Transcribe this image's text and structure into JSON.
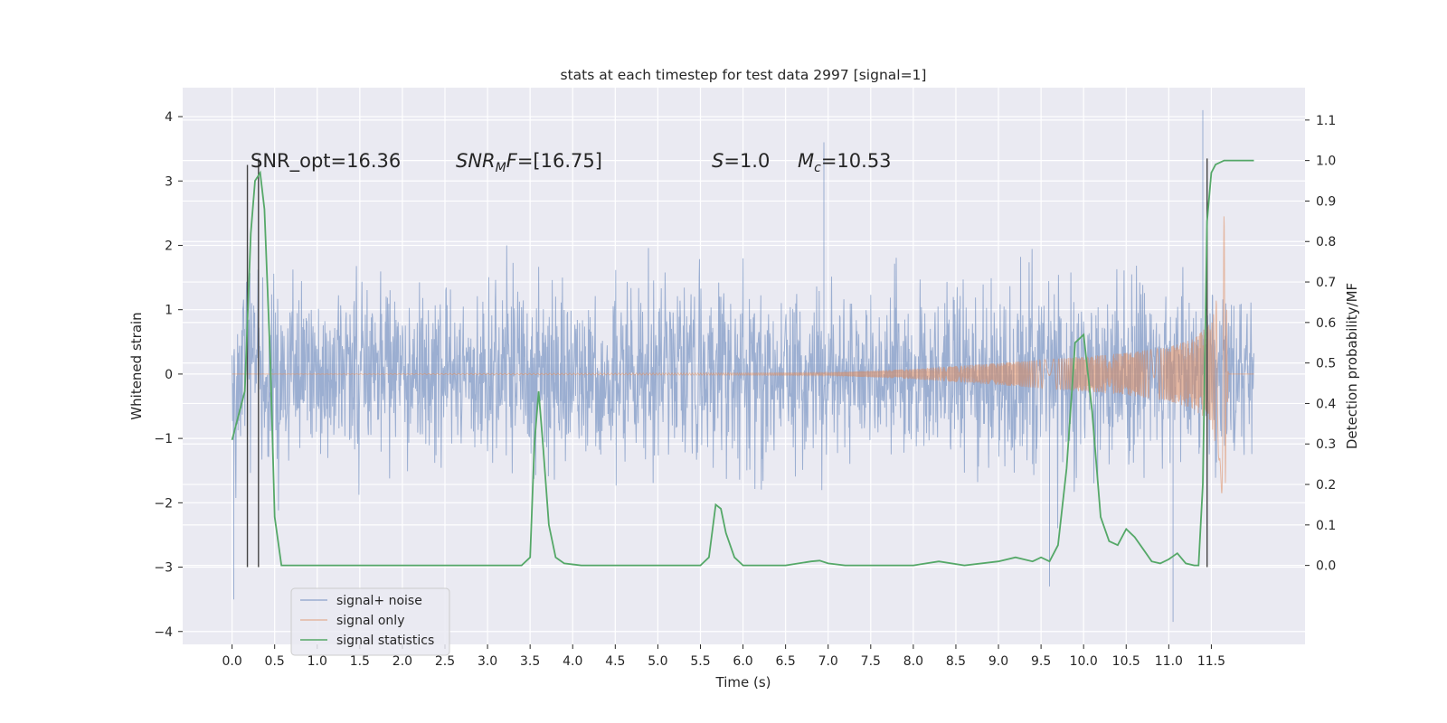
{
  "chart_data": {
    "type": "line",
    "title": "stats at each timestep for test data 2997 [signal=1]",
    "xlabel": "Time (s)",
    "ylabel_left": "Whitened strain",
    "ylabel_right": "Detection probability/MF",
    "xlim": [
      -0.58,
      12.6
    ],
    "ylim_left": [
      -4.2,
      4.45
    ],
    "ylim_right": [
      -0.195,
      1.18
    ],
    "x_ticks": [
      "0.0",
      "0.5",
      "1.0",
      "1.5",
      "2.0",
      "2.5",
      "3.0",
      "3.5",
      "4.0",
      "4.5",
      "5.0",
      "5.5",
      "6.0",
      "6.5",
      "7.0",
      "7.5",
      "8.0",
      "8.5",
      "9.0",
      "9.5",
      "10.0",
      "10.5",
      "11.0",
      "11.5"
    ],
    "y_ticks_left": [
      "−4",
      "−3",
      "−2",
      "−1",
      "0",
      "1",
      "2",
      "3",
      "4"
    ],
    "y_ticks_right": [
      "0.0",
      "0.1",
      "0.2",
      "0.3",
      "0.4",
      "0.5",
      "0.6",
      "0.7",
      "0.8",
      "0.9",
      "1.0",
      "1.1"
    ],
    "grid": true,
    "legend_position": "lower-left",
    "annotations": {
      "snr_opt": "SNR_opt=16.36",
      "snr_mf_sym": "SNR",
      "snr_mf_sub": "M",
      "snr_mf_sym2": "F",
      "snr_mf_val": "=[16.75]",
      "s_sym": "S",
      "s_val": "=1.0",
      "mc_sym": "M",
      "mc_sub": "c",
      "mc_val": "=10.53"
    },
    "series": [
      {
        "name": "signal+ noise",
        "color": "#4c72b0",
        "axis": "left",
        "description_range": [
          -1.3,
          1.3
        ],
        "duration_s": 12.0
      },
      {
        "name": "signal only",
        "color": "#dd8452",
        "axis": "left",
        "envelope": [
          [
            0.0,
            0.0
          ],
          [
            7.0,
            0.02
          ],
          [
            8.0,
            0.08
          ],
          [
            9.0,
            0.17
          ],
          [
            10.0,
            0.27
          ],
          [
            10.5,
            0.33
          ],
          [
            11.0,
            0.42
          ],
          [
            11.3,
            0.55
          ],
          [
            11.5,
            0.8
          ],
          [
            11.6,
            1.4
          ],
          [
            11.65,
            2.5
          ],
          [
            11.7,
            0.0
          ]
        ]
      },
      {
        "name": "signal statistics",
        "color": "#55a868",
        "axis": "right",
        "x": [
          0.0,
          0.15,
          0.22,
          0.27,
          0.3,
          0.33,
          0.38,
          0.45,
          0.5,
          0.58,
          0.8,
          1.5,
          2.5,
          3.0,
          3.4,
          3.5,
          3.55,
          3.6,
          3.65,
          3.72,
          3.8,
          3.9,
          4.1,
          4.5,
          5.0,
          5.5,
          5.6,
          5.68,
          5.74,
          5.8,
          5.9,
          6.0,
          6.2,
          6.5,
          6.8,
          6.9,
          7.0,
          7.2,
          7.5,
          8.0,
          8.3,
          8.6,
          9.0,
          9.2,
          9.4,
          9.5,
          9.6,
          9.7,
          9.8,
          9.9,
          10.0,
          10.1,
          10.2,
          10.3,
          10.4,
          10.5,
          10.6,
          10.7,
          10.8,
          10.9,
          11.0,
          11.1,
          11.2,
          11.3,
          11.35,
          11.4,
          11.45,
          11.5,
          11.55,
          11.65,
          12.0
        ],
        "y": [
          0.31,
          0.43,
          0.82,
          0.95,
          0.96,
          0.97,
          0.88,
          0.5,
          0.12,
          0.0,
          0.0,
          0.0,
          0.0,
          0.0,
          0.0,
          0.02,
          0.3,
          0.43,
          0.3,
          0.1,
          0.02,
          0.005,
          0.0,
          0.0,
          0.0,
          0.0,
          0.02,
          0.15,
          0.14,
          0.08,
          0.02,
          0.0,
          0.0,
          0.0,
          0.01,
          0.012,
          0.005,
          0.0,
          0.0,
          0.0,
          0.01,
          0.0,
          0.01,
          0.02,
          0.01,
          0.02,
          0.01,
          0.05,
          0.24,
          0.55,
          0.57,
          0.38,
          0.12,
          0.06,
          0.05,
          0.09,
          0.07,
          0.04,
          0.01,
          0.005,
          0.015,
          0.03,
          0.005,
          0.0,
          0.0,
          0.2,
          0.85,
          0.97,
          0.99,
          1.0,
          1.0
        ]
      }
    ],
    "vertical_markers": [
      {
        "x": 0.18,
        "y_range": [
          -3.0,
          3.25
        ]
      },
      {
        "x": 0.31,
        "y_range": [
          -3.0,
          3.35
        ]
      },
      {
        "x": 11.45,
        "y_range": [
          -3.0,
          3.35
        ]
      }
    ]
  }
}
